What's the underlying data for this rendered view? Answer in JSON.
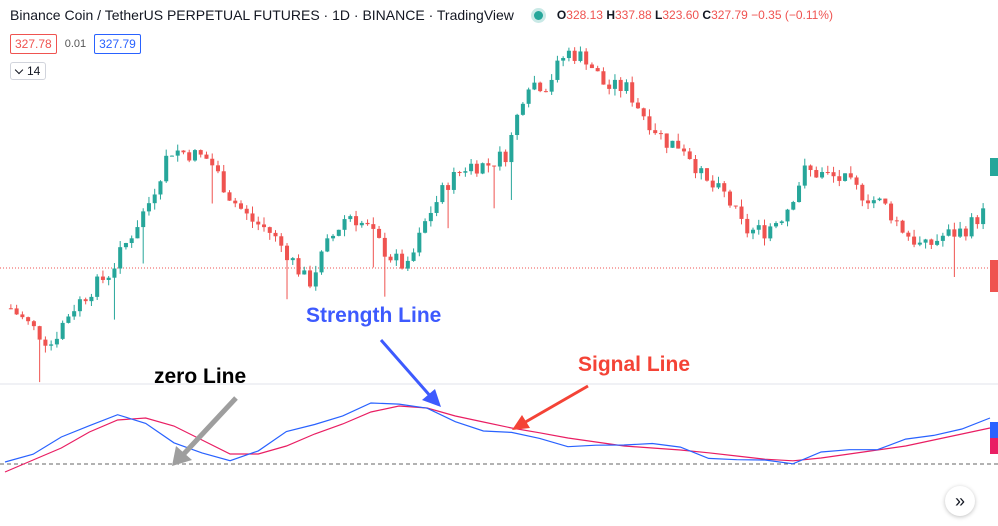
{
  "header": {
    "title": "Binance Coin / TetherUS PERPETUAL FUTURES · 1D · BINANCE · TradingView",
    "ohlc": {
      "o_label": "O",
      "o": "328.13",
      "h_label": "H",
      "h": "337.88",
      "l_label": "L",
      "l": "323.60",
      "c_label": "C",
      "c": "327.79",
      "change": "−0.35 (−0.11%)"
    },
    "sell_price": "327.78",
    "spread": "0.01",
    "buy_price": "327.79",
    "indicator_length": "14"
  },
  "annotations": {
    "zero_line": "zero Line",
    "strength_line": "Strength Line",
    "signal_line": "Signal Line"
  },
  "colors": {
    "up": "#26a69a",
    "down": "#ef5350",
    "strength": "#2962ff",
    "signal": "#e91e63",
    "strength_label": "#3d5afe",
    "signal_label": "#f44336",
    "zero_label": "#000000",
    "zero_arrow": "#9e9e9e"
  },
  "chart_data": {
    "type": "candlestick",
    "symbol": "Binance Coin / TetherUS PERPETUAL FUTURES",
    "interval": "1D",
    "exchange": "BINANCE",
    "last": {
      "open": 328.13,
      "high": 337.88,
      "low": 323.6,
      "close": 327.79
    },
    "price_path": [
      285,
      270,
      255,
      283,
      300,
      315,
      345,
      375,
      418,
      415,
      410,
      380,
      360,
      350,
      330,
      305,
      340,
      365,
      352,
      330,
      318,
      362,
      390,
      405,
      405,
      415,
      475,
      472,
      500,
      495,
      470,
      470,
      445,
      425,
      420,
      390,
      380,
      350,
      350,
      365,
      400,
      397,
      392,
      380,
      372,
      350,
      335,
      346,
      350,
      365
    ],
    "indicator": {
      "strength_line": [
        5,
        30,
        60,
        100,
        125,
        95,
        60,
        25,
        5,
        40,
        75,
        100,
        125,
        145,
        155,
        140,
        100,
        90,
        75,
        62,
        50,
        40,
        50,
        55,
        35,
        20,
        10,
        5,
        8,
        25,
        35,
        42,
        55,
        75,
        90,
        108
      ],
      "signal_line": [
        -20,
        10,
        40,
        80,
        110,
        115,
        95,
        60,
        25,
        25,
        45,
        75,
        100,
        130,
        145,
        140,
        120,
        105,
        90,
        78,
        65,
        55,
        45,
        40,
        35,
        28,
        20,
        12,
        8,
        15,
        25,
        35,
        45,
        60,
        75,
        90
      ],
      "zero_line": 0
    }
  }
}
